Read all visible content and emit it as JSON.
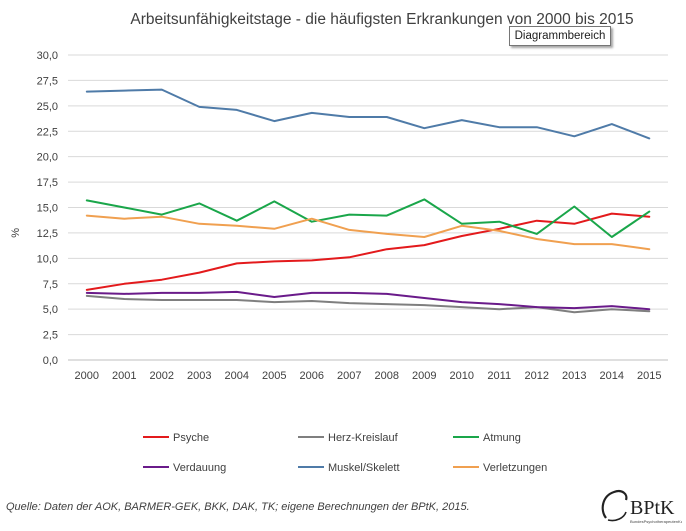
{
  "chart_data": {
    "type": "line",
    "title": "Arbeitsunfähigkeitstage - die häufigsten Erkrankungen von 2000 bis 2015",
    "ylabel": "%",
    "xlabel": "",
    "ylim": [
      0,
      30
    ],
    "yticks": [
      "0,0",
      "2,5",
      "5,0",
      "7,5",
      "10,0",
      "12,5",
      "15,0",
      "17,5",
      "20,0",
      "22,5",
      "25,0",
      "27,5",
      "30,0"
    ],
    "x": [
      "2000",
      "2001",
      "2002",
      "2003",
      "2004",
      "2005",
      "2006",
      "2007",
      "2008",
      "2009",
      "2010",
      "2011",
      "2012",
      "2013",
      "2014",
      "2015"
    ],
    "grid": true,
    "legend_position": "bottom",
    "series": [
      {
        "name": "Psyche",
        "color": "#e31a1c",
        "values": [
          6.9,
          7.5,
          7.9,
          8.6,
          9.5,
          9.7,
          9.8,
          10.1,
          10.9,
          11.3,
          12.2,
          12.9,
          13.7,
          13.4,
          14.4,
          14.1
        ]
      },
      {
        "name": "Herz-Kreislauf",
        "color": "#7f7f7f",
        "values": [
          6.3,
          6.0,
          5.9,
          5.9,
          5.9,
          5.7,
          5.8,
          5.6,
          5.5,
          5.4,
          5.2,
          5.0,
          5.2,
          4.7,
          5.0,
          4.8
        ]
      },
      {
        "name": "Atmung",
        "color": "#1aa64a",
        "values": [
          15.7,
          15.0,
          14.3,
          15.4,
          13.7,
          15.6,
          13.6,
          14.3,
          14.2,
          15.8,
          13.4,
          13.6,
          12.4,
          15.1,
          12.1,
          14.6
        ]
      },
      {
        "name": "Verdauung",
        "color": "#6a1b8a",
        "values": [
          6.6,
          6.5,
          6.6,
          6.6,
          6.7,
          6.2,
          6.6,
          6.6,
          6.5,
          6.1,
          5.7,
          5.5,
          5.2,
          5.1,
          5.3,
          5.0
        ]
      },
      {
        "name": "Muskel/Skelett",
        "color": "#4f7ba8",
        "values": [
          26.4,
          26.5,
          26.6,
          24.9,
          24.6,
          23.5,
          24.3,
          23.9,
          23.9,
          22.8,
          23.6,
          22.9,
          22.9,
          22.0,
          23.2,
          21.8
        ]
      },
      {
        "name": "Verletzungen",
        "color": "#f0a050",
        "values": [
          14.2,
          13.9,
          14.1,
          13.4,
          13.2,
          12.9,
          13.9,
          12.8,
          12.4,
          12.1,
          13.2,
          12.7,
          11.9,
          11.4,
          11.4,
          10.9
        ]
      }
    ]
  },
  "ui": {
    "tooltip": "Diagrammbereich",
    "source": "Quelle: Daten der AOK, BARMER-GEK, BKK, DAK, TK; eigene Berechnungen der BPtK, 2015.",
    "logo_text": "BPtK",
    "logo_subtext": "BundesPsychotherapeutenKammer"
  }
}
